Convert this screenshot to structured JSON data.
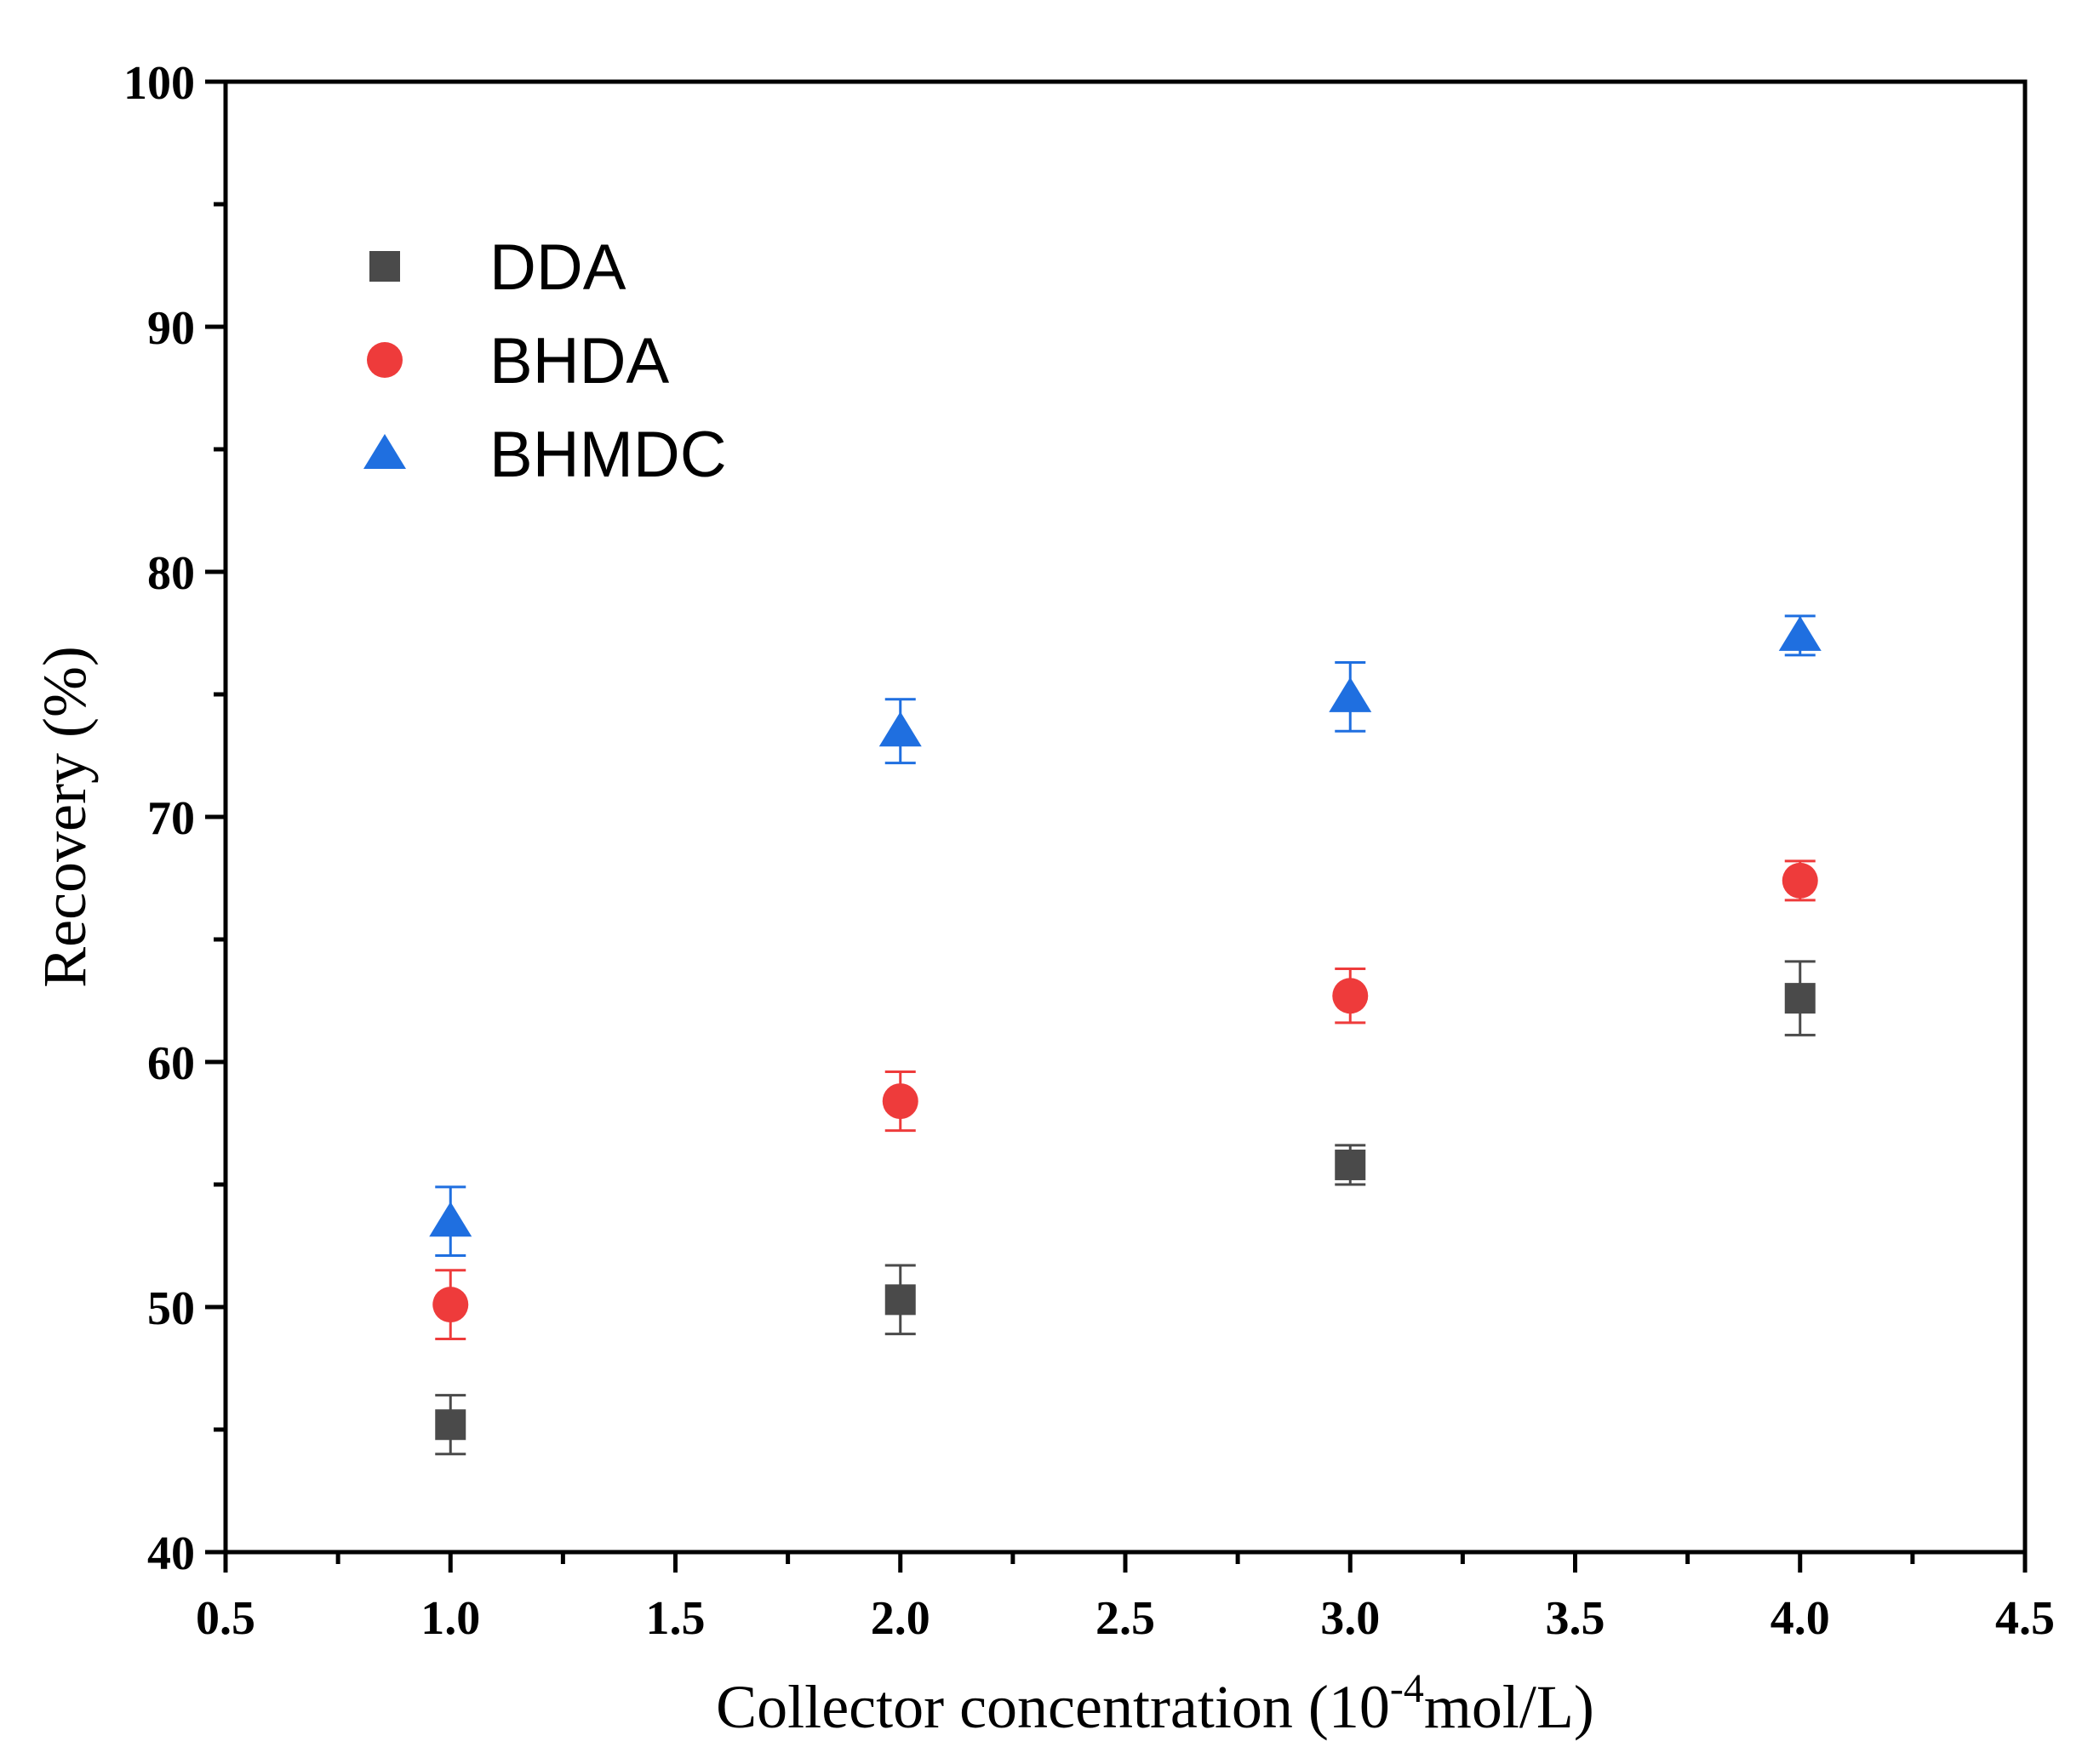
{
  "chart_data": {
    "type": "scatter",
    "title": "",
    "xlabel_main": "Collector concentration (10",
    "xlabel_sup": "-4",
    "xlabel_tail": "mol/L)",
    "ylabel": "Recovery (%)",
    "xlim": [
      0.5,
      4.5
    ],
    "ylim": [
      40,
      100
    ],
    "x_ticks": [
      "0.5",
      "1.0",
      "1.5",
      "2.0",
      "2.5",
      "3.0",
      "3.5",
      "4.0",
      "4.5"
    ],
    "y_ticks": [
      "40",
      "50",
      "60",
      "70",
      "80",
      "90",
      "100"
    ],
    "x_tick_values": [
      0.5,
      1.0,
      1.5,
      2.0,
      2.5,
      3.0,
      3.5,
      4.0,
      4.5
    ],
    "y_tick_values": [
      40,
      50,
      60,
      70,
      80,
      90,
      100
    ],
    "x_minor_ticks": [
      0.75,
      1.25,
      1.75,
      2.25,
      2.75,
      3.25,
      3.75,
      4.25
    ],
    "y_minor_ticks": [
      45,
      55,
      65,
      75,
      85,
      95
    ],
    "grid": false,
    "legend_position": "top-left",
    "x": [
      1.0,
      2.0,
      3.0,
      4.0
    ],
    "series": [
      {
        "name": "DDA",
        "marker": "square",
        "color": "#4a4a4a",
        "values": [
          45.2,
          50.3,
          55.8,
          62.6
        ],
        "errors": [
          1.2,
          1.4,
          0.8,
          1.5
        ]
      },
      {
        "name": "BHDA",
        "marker": "circle",
        "color": "#ee3b3b",
        "values": [
          50.1,
          58.4,
          62.7,
          67.4
        ],
        "errors": [
          1.4,
          1.2,
          1.1,
          0.8
        ]
      },
      {
        "name": "BHMDC",
        "marker": "triangle",
        "color": "#1f6fe0",
        "values": [
          53.5,
          73.5,
          74.9,
          77.4
        ],
        "errors": [
          1.4,
          1.3,
          1.4,
          0.8
        ]
      }
    ]
  }
}
